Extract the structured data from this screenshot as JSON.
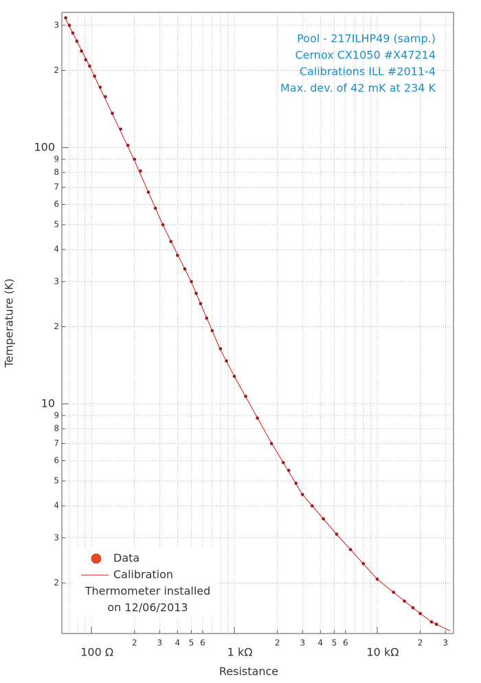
{
  "chart_data": {
    "type": "line",
    "xlabel": "Resistance",
    "ylabel": "Temperature (K)",
    "xscale": "log",
    "yscale": "log",
    "grid": true,
    "legend": "lower left",
    "xlim": [
      62,
      34200
    ],
    "ylim": [
      1.27,
      337
    ],
    "xticks": [
      {
        "value": 100,
        "label": "100  Ω"
      },
      {
        "value": 200,
        "label": "2"
      },
      {
        "value": 300,
        "label": "3"
      },
      {
        "value": 400,
        "label": "4"
      },
      {
        "value": 500,
        "label": "5"
      },
      {
        "value": 600,
        "label": "6"
      },
      {
        "value": 1000,
        "label": "1 kΩ"
      },
      {
        "value": 2000,
        "label": "2"
      },
      {
        "value": 3000,
        "label": "3"
      },
      {
        "value": 4000,
        "label": "4"
      },
      {
        "value": 5000,
        "label": "5"
      },
      {
        "value": 6000,
        "label": "6"
      },
      {
        "value": 10000,
        "label": "10 kΩ"
      },
      {
        "value": 20000,
        "label": "2"
      },
      {
        "value": 30000,
        "label": "3"
      }
    ],
    "xminor": [
      70,
      80,
      90,
      700,
      800,
      900,
      7000,
      8000,
      9000
    ],
    "yticks": [
      2,
      3,
      4,
      5,
      6,
      7,
      8,
      9,
      10,
      {
        "value": 20,
        "label": "2"
      },
      {
        "value": 30,
        "label": "3"
      },
      {
        "value": 40,
        "label": "4"
      },
      {
        "value": 50,
        "label": "5"
      },
      {
        "value": 60,
        "label": "6"
      },
      {
        "value": 70,
        "label": "7"
      },
      {
        "value": 80,
        "label": "8"
      },
      {
        "value": 90,
        "label": "9"
      },
      100,
      {
        "value": 200,
        "label": "2"
      },
      {
        "value": 300,
        "label": "3"
      }
    ],
    "annotations": [
      "Pool - 217ILHP49 (samp.)",
      "Cernox CX1050 #X47214",
      "Calibrations ILL #2011-4",
      "Max. dev. of 42 mK at 234 K"
    ],
    "legend_note": [
      "Thermometer installed",
      "on 12/06/2013"
    ],
    "series": [
      {
        "name": "Data",
        "mode": "markers",
        "color": "#8b2020",
        "legend_color": "#e8461c",
        "x": [
          66,
          70,
          74,
          79,
          85,
          91,
          97,
          105,
          115,
          125,
          140,
          160,
          180,
          200,
          220,
          250,
          280,
          316,
          360,
          400,
          450,
          500,
          540,
          580,
          640,
          700,
          800,
          880,
          1000,
          1200,
          1450,
          1820,
          2200,
          2400,
          2700,
          3000,
          3500,
          4200,
          5200,
          6500,
          8000,
          10000,
          13000,
          15500,
          17800,
          20000,
          24000,
          26000
        ],
        "values": [
          321,
          300,
          280,
          260,
          238,
          220,
          208,
          190,
          172,
          158,
          136,
          118,
          102,
          90,
          81,
          67,
          58,
          50,
          43,
          38,
          33.6,
          30,
          27,
          24.6,
          21.6,
          19.3,
          16.4,
          14.7,
          12.8,
          10.7,
          8.8,
          7.0,
          5.9,
          5.5,
          4.9,
          4.43,
          4.0,
          3.56,
          3.1,
          2.7,
          2.38,
          2.07,
          1.84,
          1.7,
          1.6,
          1.52,
          1.41,
          1.38
        ]
      },
      {
        "name": "Calibration",
        "mode": "line",
        "color": "#dd1111",
        "x": [
          65,
          97,
          199,
          316,
          498,
          793,
          1000,
          1820,
          2993,
          5200,
          10000,
          17800,
          24000,
          32400
        ],
        "values": [
          322,
          208,
          89.5,
          49.8,
          30,
          16.4,
          12.8,
          7.03,
          4.43,
          3.1,
          2.07,
          1.6,
          1.41,
          1.3
        ]
      }
    ]
  }
}
